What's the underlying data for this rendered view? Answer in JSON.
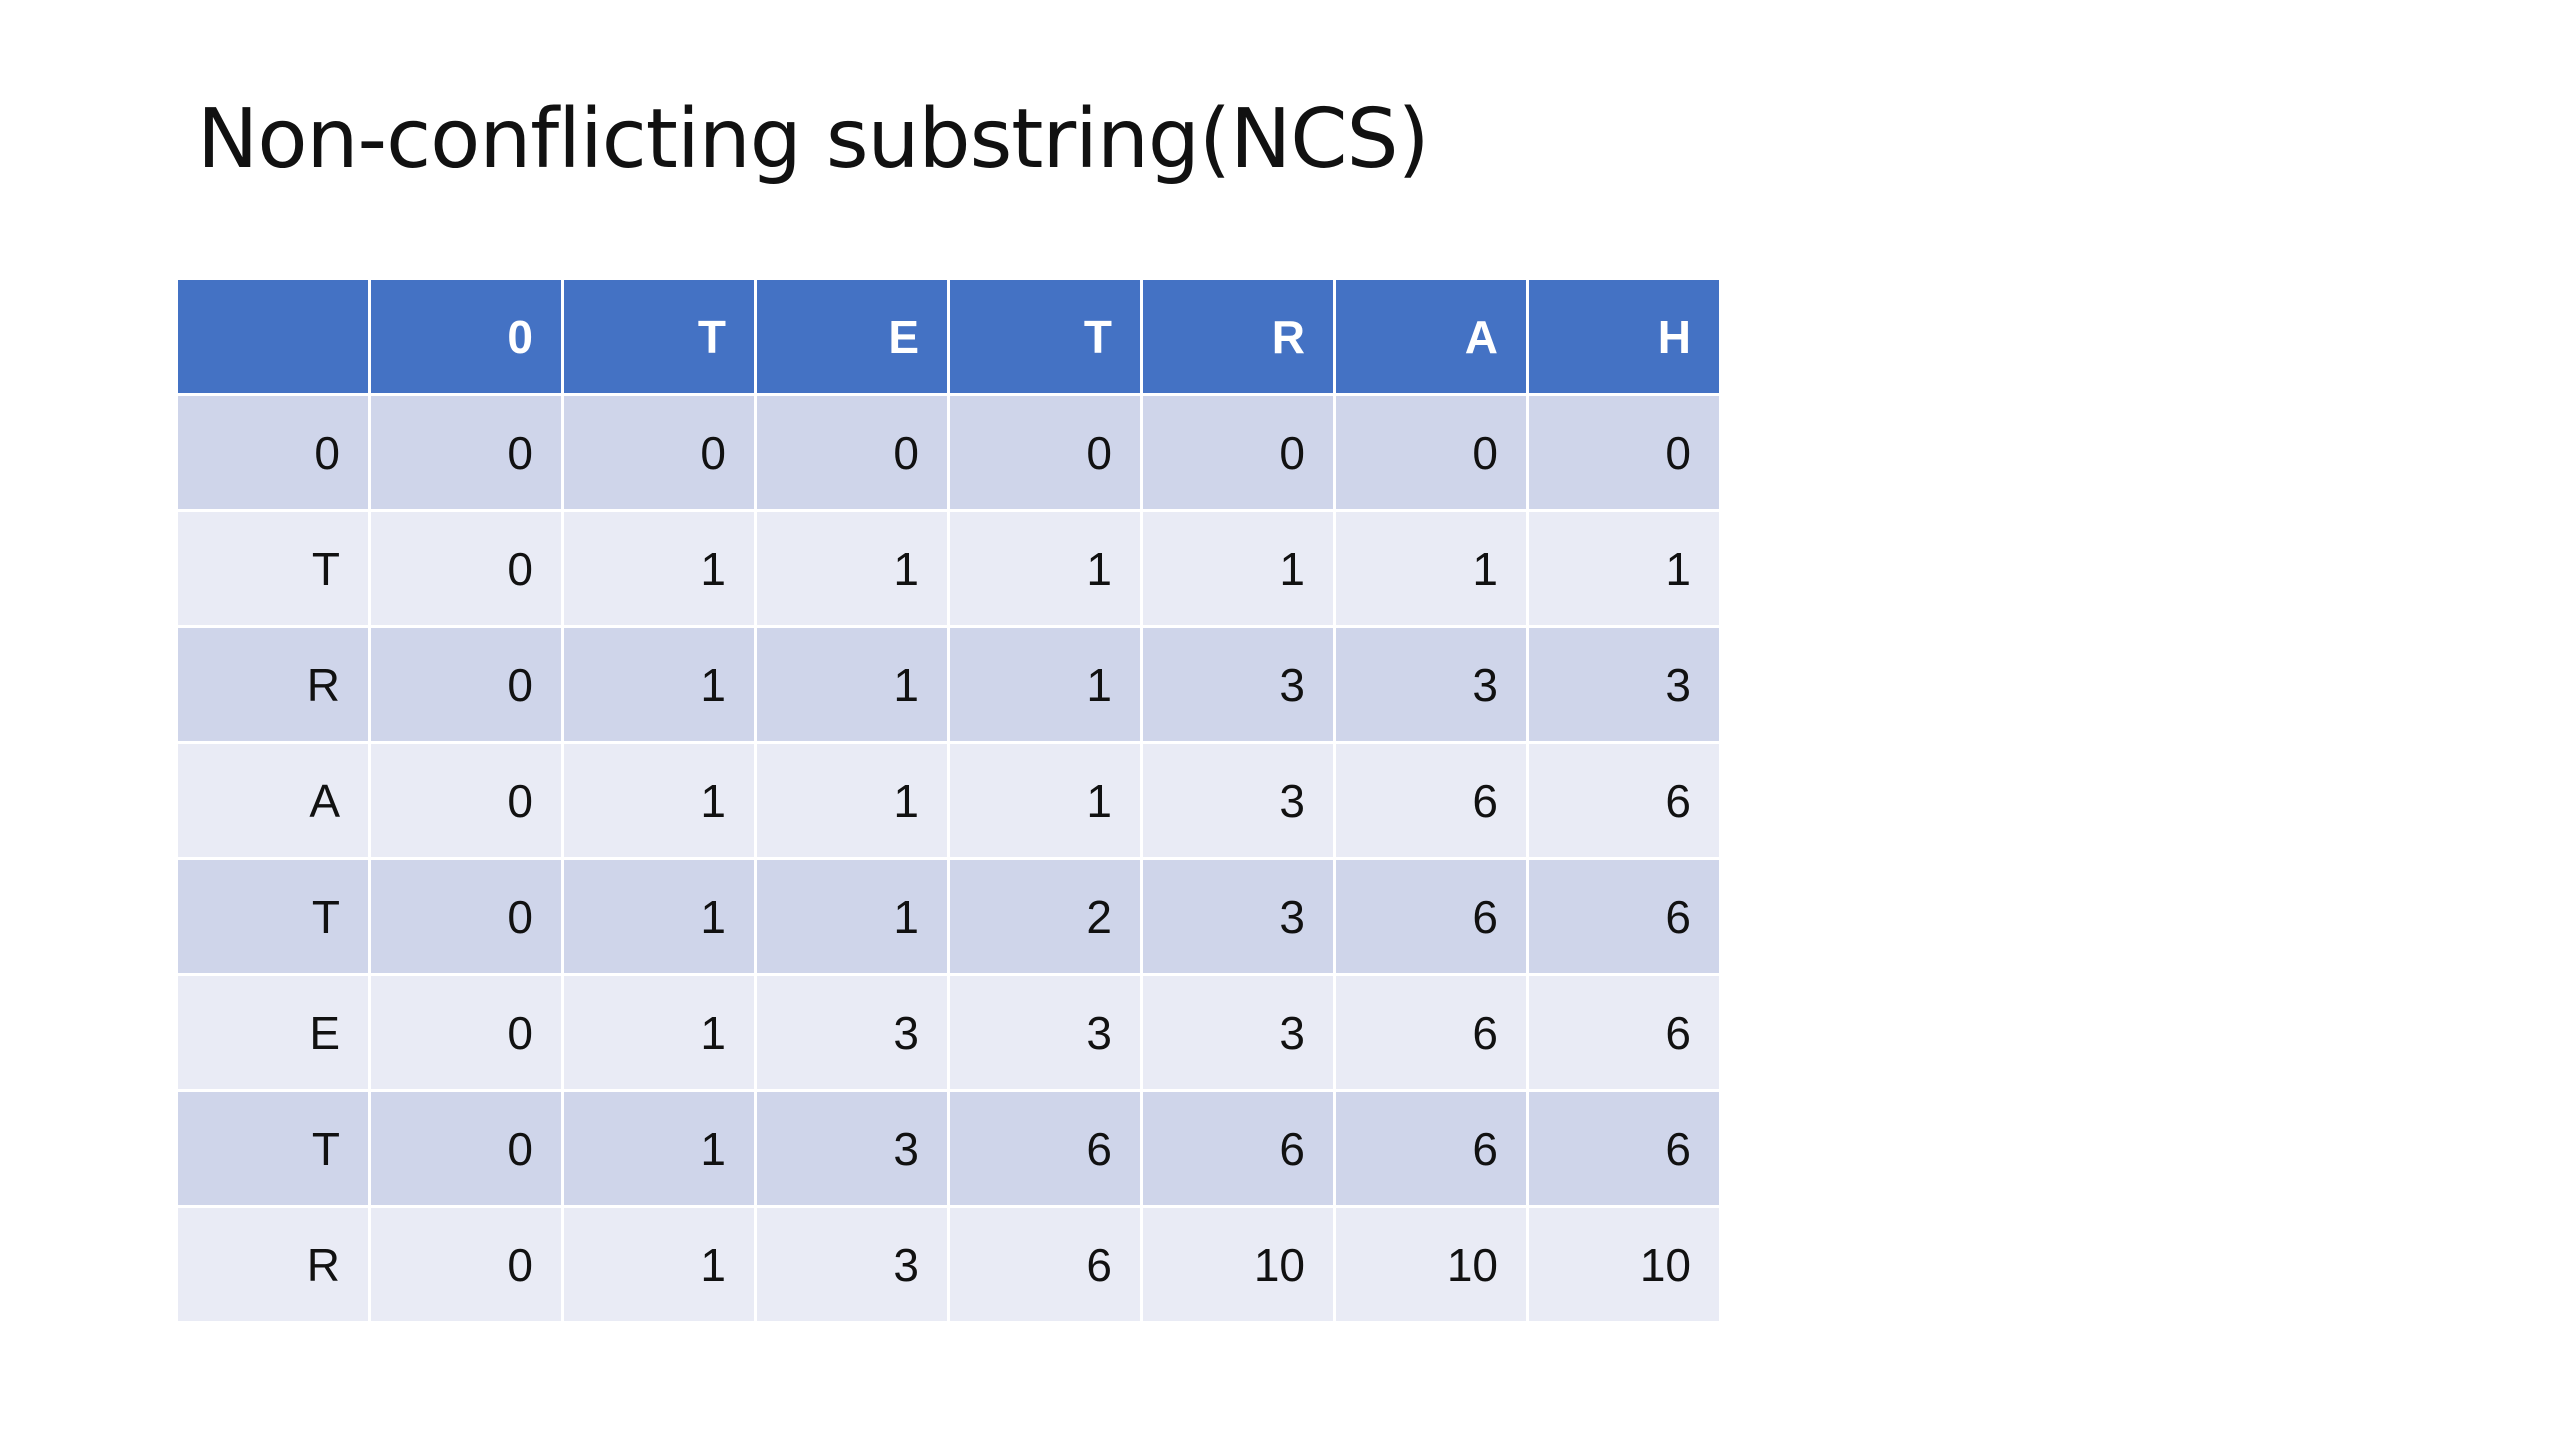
{
  "title": "Non-conflicting substring(NCS)",
  "table": {
    "header": [
      "",
      "0",
      "T",
      "E",
      "T",
      "R",
      "A",
      "H"
    ],
    "rows": [
      [
        "0",
        "0",
        "0",
        "0",
        "0",
        "0",
        "0",
        "0"
      ],
      [
        "T",
        "0",
        "1",
        "1",
        "1",
        "1",
        "1",
        "1"
      ],
      [
        "R",
        "0",
        "1",
        "1",
        "1",
        "3",
        "3",
        "3"
      ],
      [
        "A",
        "0",
        "1",
        "1",
        "1",
        "3",
        "6",
        "6"
      ],
      [
        "T",
        "0",
        "1",
        "1",
        "2",
        "3",
        "6",
        "6"
      ],
      [
        "E",
        "0",
        "1",
        "3",
        "3",
        "3",
        "6",
        "6"
      ],
      [
        "T",
        "0",
        "1",
        "3",
        "6",
        "6",
        "6",
        "6"
      ],
      [
        "R",
        "0",
        "1",
        "3",
        "6",
        "10",
        "10",
        "10"
      ]
    ]
  },
  "colors": {
    "header_bg": "#4472c4",
    "row_odd_bg": "#cfd5ea",
    "row_even_bg": "#e9ebf5"
  }
}
